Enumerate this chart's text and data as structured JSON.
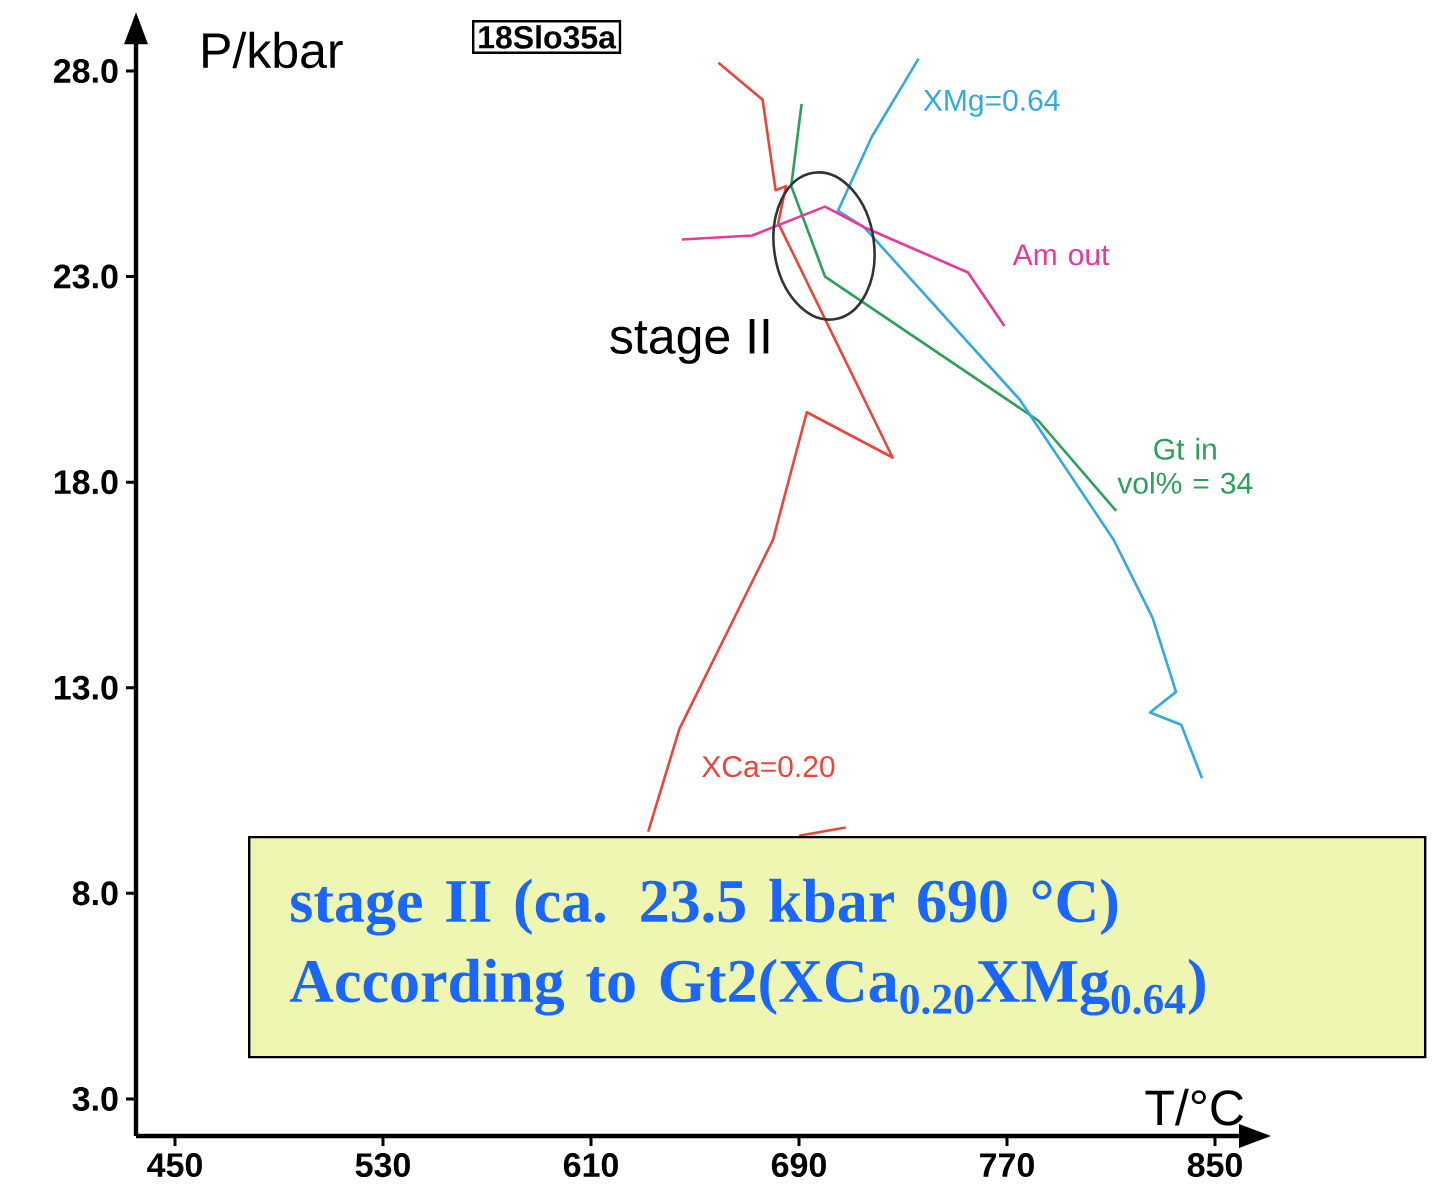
{
  "chart_data": {
    "type": "line",
    "title": "18Slo35a",
    "xlabel": "T/°C",
    "ylabel": "P/kbar",
    "xlim": [
      435,
      860
    ],
    "ylim": [
      2.1,
      28.7
    ],
    "xticks": [
      450,
      530,
      610,
      690,
      770,
      850
    ],
    "yticks": [
      {
        "value": 3,
        "label": "3.0"
      },
      {
        "value": 8,
        "label": "8.0"
      },
      {
        "value": 13,
        "label": "13.0"
      },
      {
        "value": 18,
        "label": "18.0"
      },
      {
        "value": 23,
        "label": "23.0"
      },
      {
        "value": 28,
        "label": "28.0"
      }
    ],
    "series": [
      {
        "name": "XCa=0.20",
        "color": "#e8463c",
        "x": [
          659,
          676,
          681,
          685,
          682,
          726,
          693,
          680,
          644,
          632,
          null,
          690,
          708
        ],
        "values": [
          28.2,
          27.3,
          25.1,
          25.2,
          24.3,
          18.6,
          19.7,
          16.6,
          12.0,
          9.5,
          null,
          9.4,
          9.6
        ]
      },
      {
        "name": "Gt in vol% = 34",
        "color": "#2ca05a",
        "x": [
          691,
          687,
          700,
          782,
          812
        ],
        "values": [
          27.2,
          25.2,
          23.0,
          19.5,
          17.3
        ]
      },
      {
        "name": "XMg=0.64",
        "color": "#33aadd",
        "x": [
          736,
          718,
          705,
          715,
          775,
          811,
          826,
          835,
          825,
          837,
          845
        ],
        "values": [
          28.3,
          26.4,
          24.6,
          24.2,
          20.0,
          16.6,
          14.7,
          12.9,
          12.4,
          12.1,
          10.8
        ]
      },
      {
        "name": "Am out",
        "color": "#e6399b",
        "x": [
          645,
          672,
          700,
          715,
          755,
          769
        ],
        "values": [
          23.9,
          24.0,
          24.7,
          24.2,
          23.1,
          21.8
        ]
      }
    ],
    "annotations": [
      "stage II",
      "stage II (ca. 23.5 kbar 690 °C)",
      "According to Gt2(XCa$_{0.20}$XMg$_{0.64}$)"
    ]
  }
}
